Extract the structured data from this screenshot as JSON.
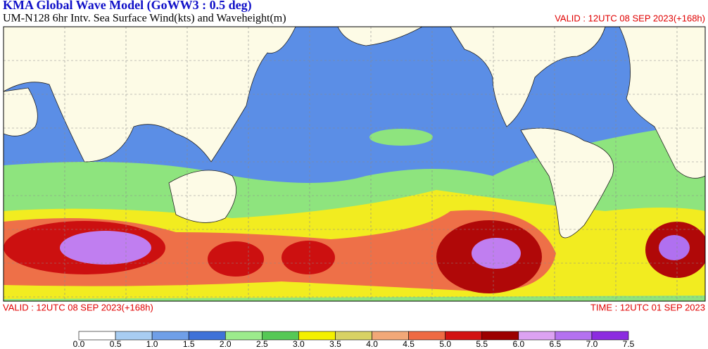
{
  "header": {
    "title": "KMA  Global Wave Model (GoWW3 : 0.5 deg)",
    "subtitle": "UM-N128  6hr Intv. Sea Surface Wind(kts) and Waveheight(m)",
    "valid": "VALID : 12UTC 08 SEP 2023(+168h)"
  },
  "footer": {
    "valid": "VALID : 12UTC 08 SEP 2023(+168h)",
    "time": "TIME : 12UTC 01 SEP 2023"
  },
  "colorbar": {
    "labels": [
      "0.0",
      "0.5",
      "1.0",
      "1.5",
      "2.0",
      "2.5",
      "3.0",
      "3.5",
      "4.0",
      "4.5",
      "5.0",
      "5.5",
      "6.0",
      "6.5",
      "7.0",
      "7.5"
    ],
    "colors": [
      "#ffffff",
      "#a8cdf2",
      "#6f9fe8",
      "#3f72d8",
      "#9ceb8c",
      "#55c855",
      "#f4f000",
      "#d8d264",
      "#f2a878",
      "#ee6a44",
      "#d21212",
      "#9c0000",
      "#dca2f2",
      "#b472f0",
      "#8c2ce0"
    ]
  }
}
